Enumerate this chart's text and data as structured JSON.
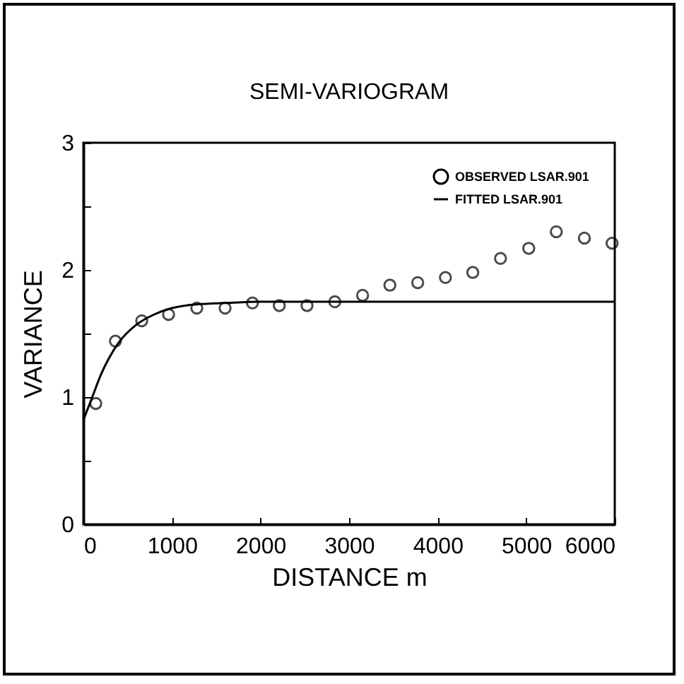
{
  "chart_data": {
    "type": "scatter",
    "title": "SEMI-VARIOGRAM",
    "xlabel": "DISTANCE  m",
    "ylabel": "VARIANCE",
    "xlim": [
      0,
      6000
    ],
    "xticks": [
      0,
      1000,
      2000,
      3000,
      4000,
      5000,
      6000
    ],
    "ylim": [
      0,
      3
    ],
    "yticks": [
      0,
      {
        "value": 0.5,
        "label": null
      },
      1,
      {
        "value": 1.5,
        "label": null
      },
      2,
      {
        "value": 2.5,
        "label": null
      },
      3
    ],
    "grid": false,
    "legend": "top right",
    "series": [
      {
        "name": "OBSERVED LSAR.901",
        "marker": "circle",
        "color": "#000000",
        "x": [
          140,
          362,
          659,
          962,
          1281,
          1600,
          1909,
          2212,
          2525,
          2839,
          3153,
          3461,
          3775,
          4088,
          4397,
          4710,
          5029,
          5340,
          5657,
          5970
        ],
        "values": [
          0.95,
          1.44,
          1.6,
          1.65,
          1.7,
          1.7,
          1.74,
          1.72,
          1.72,
          1.75,
          1.8,
          1.88,
          1.9,
          1.94,
          1.98,
          2.09,
          2.17,
          2.3,
          2.25,
          2.21
        ]
      },
      {
        "name": "FITTED    LSAR.901",
        "type": "line",
        "marker": "none",
        "color": "#000000",
        "line_style": "solid",
        "x": [
          0,
          100,
          200,
          300,
          400,
          600,
          800,
          1000,
          1300,
          1600,
          2000,
          3000,
          6000
        ],
        "values": [
          0.82,
          1.0,
          1.18,
          1.32,
          1.43,
          1.57,
          1.65,
          1.7,
          1.73,
          1.74,
          1.75,
          1.75,
          1.75
        ]
      }
    ]
  }
}
